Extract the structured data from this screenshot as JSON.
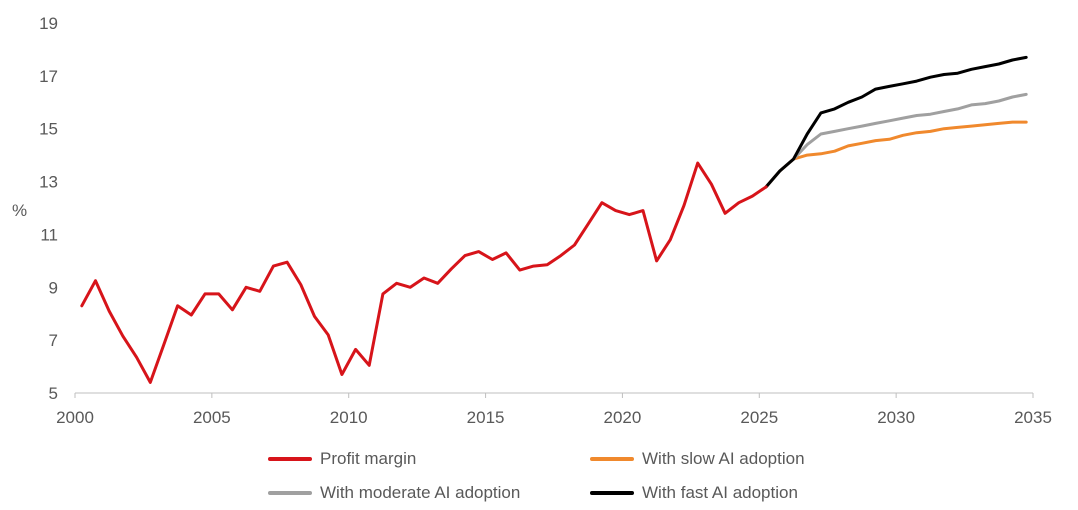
{
  "chart_data": {
    "type": "line",
    "title": "",
    "xlabel": "",
    "ylabel": "%",
    "xlim": [
      2000,
      2035
    ],
    "ylim": [
      5,
      19
    ],
    "x_ticks": [
      "2000",
      "2005",
      "2010",
      "2015",
      "2020",
      "2025",
      "2030",
      "2035"
    ],
    "y_ticks": [
      "5",
      "7",
      "9",
      "11",
      "13",
      "15",
      "17",
      "19"
    ],
    "grid": false,
    "legend_position": "bottom",
    "series": [
      {
        "name": "Profit margin",
        "color": "#d7141a",
        "points": [
          [
            2000.25,
            8.3
          ],
          [
            2000.75,
            9.25
          ],
          [
            2001.25,
            8.1
          ],
          [
            2001.75,
            7.15
          ],
          [
            2002.25,
            6.35
          ],
          [
            2002.75,
            5.4
          ],
          [
            2003.25,
            6.85
          ],
          [
            2003.75,
            8.3
          ],
          [
            2004.25,
            7.95
          ],
          [
            2004.75,
            8.75
          ],
          [
            2005.25,
            8.75
          ],
          [
            2005.75,
            8.15
          ],
          [
            2006.25,
            9.0
          ],
          [
            2006.75,
            8.85
          ],
          [
            2007.25,
            9.8
          ],
          [
            2007.75,
            9.95
          ],
          [
            2008.25,
            9.1
          ],
          [
            2008.75,
            7.9
          ],
          [
            2009.25,
            7.2
          ],
          [
            2009.75,
            5.7
          ],
          [
            2010.25,
            6.65
          ],
          [
            2010.75,
            6.05
          ],
          [
            2011.25,
            8.75
          ],
          [
            2011.75,
            9.15
          ],
          [
            2012.25,
            9.0
          ],
          [
            2012.75,
            9.35
          ],
          [
            2013.25,
            9.15
          ],
          [
            2013.75,
            9.7
          ],
          [
            2014.25,
            10.2
          ],
          [
            2014.75,
            10.35
          ],
          [
            2015.25,
            10.05
          ],
          [
            2015.75,
            10.3
          ],
          [
            2016.25,
            9.65
          ],
          [
            2016.75,
            9.8
          ],
          [
            2017.25,
            9.85
          ],
          [
            2017.75,
            10.2
          ],
          [
            2018.25,
            10.6
          ],
          [
            2018.75,
            11.4
          ],
          [
            2019.25,
            12.2
          ],
          [
            2019.75,
            11.9
          ],
          [
            2020.25,
            11.75
          ],
          [
            2020.75,
            11.9
          ],
          [
            2021.25,
            10.0
          ],
          [
            2021.75,
            10.8
          ],
          [
            2022.25,
            12.1
          ],
          [
            2022.75,
            13.7
          ],
          [
            2023.25,
            12.9
          ],
          [
            2023.75,
            11.8
          ],
          [
            2024.25,
            12.2
          ],
          [
            2024.75,
            12.45
          ],
          [
            2025.25,
            12.8
          ]
        ]
      },
      {
        "name": "With slow AI adoption",
        "color": "#f0892d",
        "points": [
          [
            2025.25,
            12.8
          ],
          [
            2025.75,
            13.4
          ],
          [
            2026.25,
            13.85
          ],
          [
            2026.75,
            14.0
          ],
          [
            2027.25,
            14.05
          ],
          [
            2027.75,
            14.15
          ],
          [
            2028.25,
            14.35
          ],
          [
            2028.75,
            14.45
          ],
          [
            2029.25,
            14.55
          ],
          [
            2029.75,
            14.6
          ],
          [
            2030.25,
            14.75
          ],
          [
            2030.75,
            14.85
          ],
          [
            2031.25,
            14.9
          ],
          [
            2031.75,
            15.0
          ],
          [
            2032.25,
            15.05
          ],
          [
            2032.75,
            15.1
          ],
          [
            2033.25,
            15.15
          ],
          [
            2033.75,
            15.2
          ],
          [
            2034.25,
            15.25
          ],
          [
            2034.75,
            15.25
          ]
        ]
      },
      {
        "name": "With moderate AI adoption",
        "color": "#a0a0a0",
        "points": [
          [
            2025.25,
            12.8
          ],
          [
            2025.75,
            13.4
          ],
          [
            2026.25,
            13.85
          ],
          [
            2026.75,
            14.4
          ],
          [
            2027.25,
            14.8
          ],
          [
            2027.75,
            14.9
          ],
          [
            2028.25,
            15.0
          ],
          [
            2028.75,
            15.1
          ],
          [
            2029.25,
            15.2
          ],
          [
            2029.75,
            15.3
          ],
          [
            2030.25,
            15.4
          ],
          [
            2030.75,
            15.5
          ],
          [
            2031.25,
            15.55
          ],
          [
            2031.75,
            15.65
          ],
          [
            2032.25,
            15.75
          ],
          [
            2032.75,
            15.9
          ],
          [
            2033.25,
            15.95
          ],
          [
            2033.75,
            16.05
          ],
          [
            2034.25,
            16.2
          ],
          [
            2034.75,
            16.3
          ]
        ]
      },
      {
        "name": "With fast AI adoption",
        "color": "#000000",
        "points": [
          [
            2025.25,
            12.8
          ],
          [
            2025.75,
            13.4
          ],
          [
            2026.25,
            13.85
          ],
          [
            2026.75,
            14.8
          ],
          [
            2027.25,
            15.6
          ],
          [
            2027.75,
            15.75
          ],
          [
            2028.25,
            16.0
          ],
          [
            2028.75,
            16.2
          ],
          [
            2029.25,
            16.5
          ],
          [
            2029.75,
            16.6
          ],
          [
            2030.25,
            16.7
          ],
          [
            2030.75,
            16.8
          ],
          [
            2031.25,
            16.95
          ],
          [
            2031.75,
            17.05
          ],
          [
            2032.25,
            17.1
          ],
          [
            2032.75,
            17.25
          ],
          [
            2033.25,
            17.35
          ],
          [
            2033.75,
            17.45
          ],
          [
            2034.25,
            17.6
          ],
          [
            2034.75,
            17.7
          ]
        ]
      }
    ],
    "legend_order": [
      0,
      2,
      1,
      3
    ]
  }
}
